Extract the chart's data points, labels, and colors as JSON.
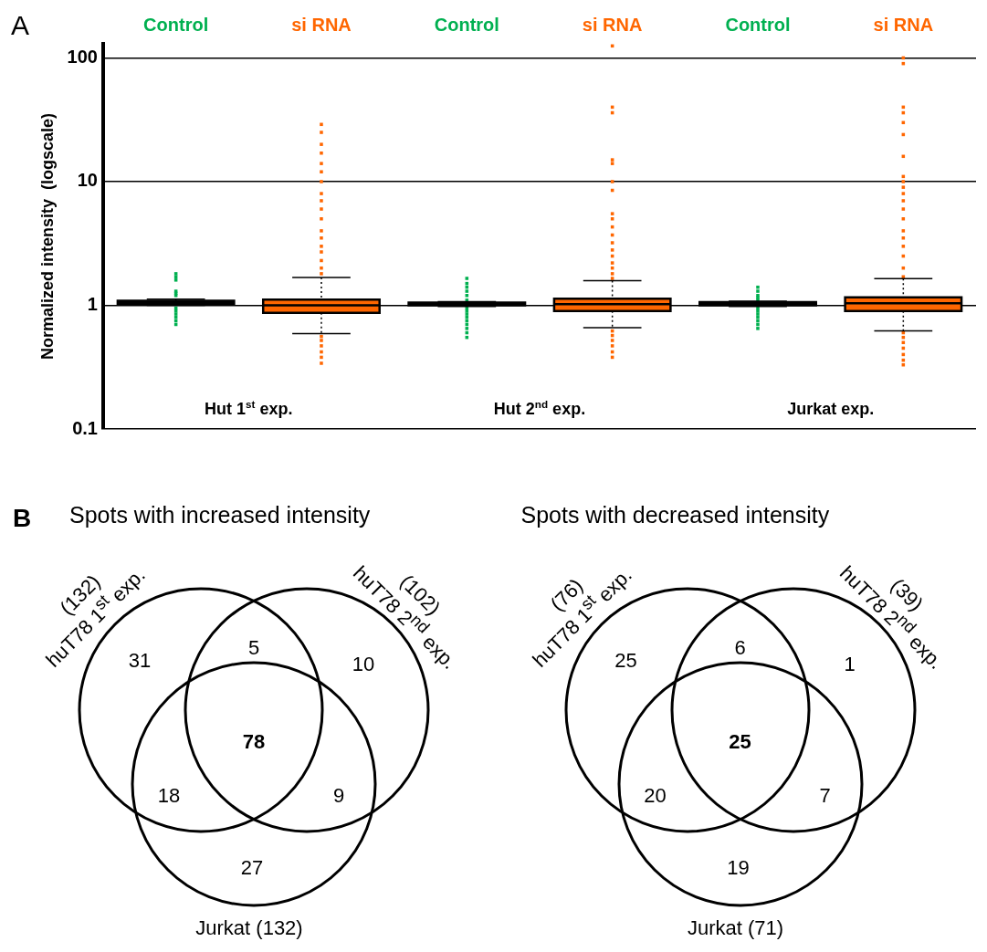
{
  "chart_data": [
    {
      "type": "box",
      "ylabel": "Normalized intensity  (logscale)",
      "categories": [
        "Control",
        "si RNA",
        "Control",
        "si RNA",
        "Control",
        "si RNA"
      ],
      "colors": [
        "#00b050",
        "#ff6600",
        "#00b050",
        "#ff6600",
        "#00b050",
        "#ff6600"
      ],
      "boxes": [
        {
          "low": 1.0,
          "q1": 1.03,
          "median": 1.06,
          "q3": 1.09,
          "high": 1.12,
          "outliers": [
            0.7,
            0.75,
            0.8,
            0.85,
            0.9,
            0.95,
            1.2,
            1.25,
            1.3,
            1.6,
            1.7,
            1.8
          ]
        },
        {
          "low": 0.59,
          "q1": 0.87,
          "median": 1.0,
          "q3": 1.11,
          "high": 1.68,
          "outliers": [
            0.34,
            0.38,
            0.42,
            0.47,
            0.52,
            0.56,
            1.8,
            2,
            2.3,
            2.7,
            3,
            3.5,
            4,
            5,
            6,
            7,
            8,
            10,
            12,
            14,
            17,
            20,
            25,
            29
          ]
        },
        {
          "low": 0.98,
          "q1": 1.0,
          "median": 1.03,
          "q3": 1.05,
          "high": 1.07,
          "outliers": [
            0.55,
            0.6,
            0.65,
            0.7,
            0.75,
            0.8,
            0.85,
            0.9,
            0.95,
            1.1,
            1.2,
            1.3,
            1.4,
            1.5,
            1.65
          ]
        },
        {
          "low": 0.66,
          "q1": 0.9,
          "median": 1.02,
          "q3": 1.13,
          "high": 1.58,
          "outliers": [
            0.38,
            0.42,
            0.47,
            0.52,
            0.57,
            0.62,
            1.65,
            1.8,
            2,
            2.2,
            2.5,
            2.8,
            3.2,
            3.7,
            4.3,
            5,
            5.5,
            8.5,
            10,
            14,
            15,
            36,
            40,
            125
          ]
        },
        {
          "low": 0.98,
          "q1": 1.0,
          "median": 1.03,
          "q3": 1.06,
          "high": 1.08,
          "outliers": [
            0.65,
            0.7,
            0.75,
            0.8,
            0.85,
            0.9,
            0.95,
            1.1,
            1.15,
            1.2,
            1.3,
            1.4
          ]
        },
        {
          "low": 0.62,
          "q1": 0.9,
          "median": 1.04,
          "q3": 1.16,
          "high": 1.64,
          "outliers": [
            0.33,
            0.36,
            0.4,
            0.45,
            0.5,
            0.55,
            0.6,
            1.7,
            2,
            2.5,
            3,
            3.5,
            4,
            5,
            6,
            7,
            8,
            9,
            10,
            11,
            16,
            24,
            30,
            36,
            40,
            90,
            100
          ]
        }
      ],
      "ylim": [
        0.1,
        130
      ],
      "yticks": [
        0.1,
        1,
        10,
        100
      ],
      "log": true,
      "grid": "y",
      "marker": "square",
      "annotations": [
        "A",
        "Hut 1$^{st}$ exp.",
        "Hut 2$^{nd}$ exp.",
        "Jurkat exp."
      ]
    },
    {
      "type": "other",
      "title": "Spots with increased intensity",
      "annotations": [
        "B",
        "(132)",
        "huT78 1$^{st}$ exp.",
        "(102)",
        "huT78 2$^{nd}$ exp.",
        "Jurkat (132)",
        "31",
        "5",
        "10",
        "18",
        "78",
        "9",
        "27"
      ]
    },
    {
      "type": "other",
      "title": "Spots with decreased intensity",
      "annotations": [
        "(76)",
        "huT78 1$^{st}$ exp.",
        "(39)",
        "huT78 2$^{nd}$ exp.",
        "Jurkat (71)",
        "25",
        "6",
        "1",
        "20",
        "25",
        "7",
        "19"
      ]
    }
  ]
}
